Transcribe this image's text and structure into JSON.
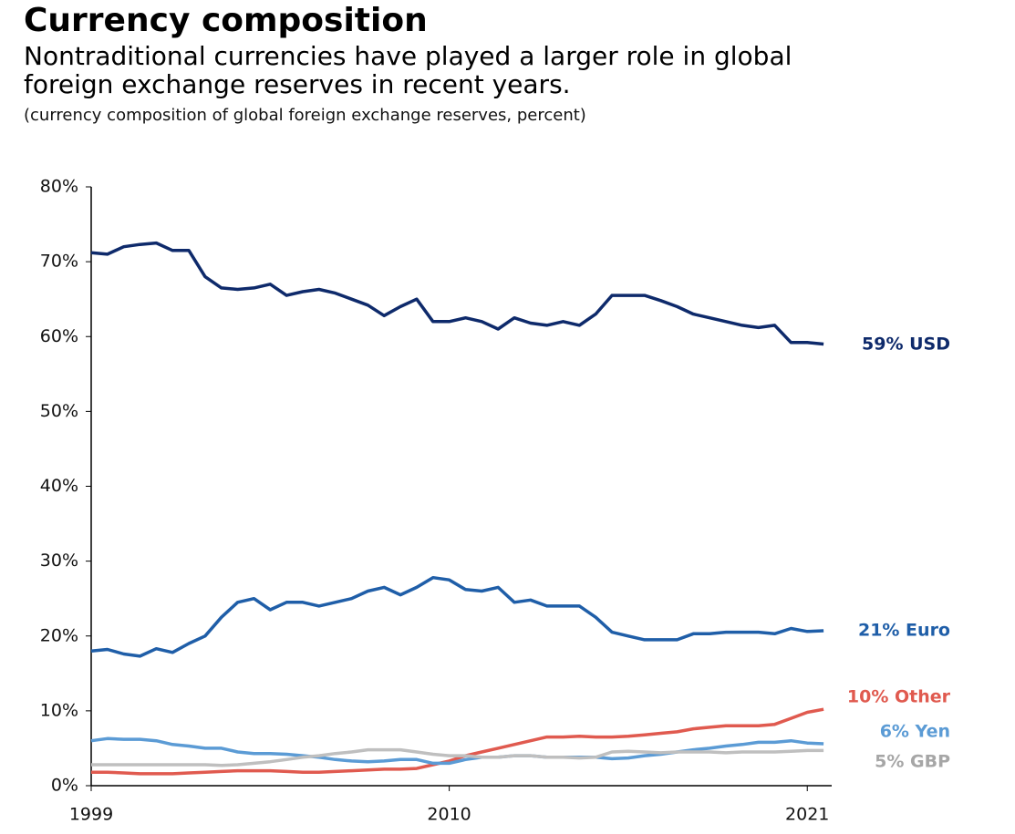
{
  "chart_data": {
    "type": "line",
    "title": "Currency composition",
    "subtitle": [
      "Nontraditional currencies have played a larger role in global",
      "foreign exchange reserves in recent years."
    ],
    "note": "(currency composition of global foreign exchange reserves, percent)",
    "x": [
      1999,
      1999.5,
      2000,
      2000.5,
      2001,
      2001.5,
      2002,
      2002.5,
      2003,
      2003.5,
      2004,
      2004.5,
      2005,
      2005.5,
      2006,
      2006.5,
      2007,
      2007.5,
      2008,
      2008.5,
      2009,
      2009.5,
      2010,
      2010.5,
      2011,
      2011.5,
      2012,
      2012.5,
      2013,
      2013.5,
      2014,
      2014.5,
      2015,
      2015.5,
      2016,
      2016.5,
      2017,
      2017.5,
      2018,
      2018.5,
      2019,
      2019.5,
      2020,
      2020.5,
      2021,
      2021.5
    ],
    "xlim": [
      1999,
      2021.75
    ],
    "xticks": [
      1999,
      2010,
      2021
    ],
    "ylim": [
      0,
      80
    ],
    "yticks": [
      {
        "value": 0,
        "label": "0%"
      },
      {
        "value": 10,
        "label": "10%"
      },
      {
        "value": 20,
        "label": "20%"
      },
      {
        "value": 30,
        "label": "30%"
      },
      {
        "value": 40,
        "label": "40%"
      },
      {
        "value": 50,
        "label": "50%"
      },
      {
        "value": 60,
        "label": "60%"
      },
      {
        "value": 70,
        "label": "70%"
      },
      {
        "value": 80,
        "label": "80%"
      }
    ],
    "grid": false,
    "series": [
      {
        "name": "59% USD",
        "color": "#0e2a6b",
        "values": [
          71.2,
          71.0,
          72,
          72.3,
          72.5,
          71.5,
          71.5,
          68.0,
          66.5,
          66.3,
          66.5,
          67,
          65.5,
          66,
          66.3,
          65.8,
          65,
          64.2,
          62.8,
          64,
          65,
          62,
          62,
          62.5,
          62,
          61,
          62.5,
          61.8,
          61.5,
          62,
          61.5,
          63,
          65.5,
          65.5,
          65.5,
          64.8,
          64,
          63,
          62.5,
          62,
          61.5,
          61.2,
          61.5,
          59.2,
          59.2,
          59
        ]
      },
      {
        "name": "21% Euro",
        "color": "#1f5ea8",
        "values": [
          18,
          18.2,
          17.6,
          17.3,
          18.3,
          17.8,
          19,
          20,
          22.5,
          24.5,
          25,
          23.5,
          24.5,
          24.5,
          24,
          24.5,
          25,
          26,
          26.5,
          25.5,
          26.5,
          27.8,
          27.5,
          26.2,
          26,
          26.5,
          24.5,
          24.8,
          24,
          24,
          24,
          22.5,
          20.5,
          20,
          19.5,
          19.5,
          19.5,
          20.3,
          20.3,
          20.5,
          20.5,
          20.5,
          20.3,
          21,
          20.6,
          20.7
        ]
      },
      {
        "name": "10% Other",
        "color": "#e05a4f",
        "values": [
          1.8,
          1.8,
          1.7,
          1.6,
          1.6,
          1.6,
          1.7,
          1.8,
          1.9,
          2.0,
          2.0,
          2.0,
          1.9,
          1.8,
          1.8,
          1.9,
          2.0,
          2.1,
          2.2,
          2.2,
          2.3,
          2.8,
          3.3,
          4.0,
          4.5,
          5.0,
          5.5,
          6.0,
          6.5,
          6.5,
          6.6,
          6.5,
          6.5,
          6.6,
          6.8,
          7.0,
          7.2,
          7.6,
          7.8,
          8.0,
          8.0,
          8.0,
          8.2,
          9.0,
          9.8,
          10.2
        ]
      },
      {
        "name": "6% Yen",
        "color": "#5b9bd5",
        "values": [
          6,
          6.3,
          6.2,
          6.2,
          6.0,
          5.5,
          5.3,
          5,
          5.0,
          4.5,
          4.3,
          4.3,
          4.2,
          4.0,
          3.8,
          3.5,
          3.3,
          3.2,
          3.3,
          3.5,
          3.5,
          3.0,
          3.0,
          3.5,
          3.8,
          3.8,
          4.0,
          4.0,
          3.8,
          3.8,
          3.8,
          3.8,
          3.6,
          3.7,
          4.0,
          4.2,
          4.5,
          4.8,
          5.0,
          5.3,
          5.5,
          5.8,
          5.8,
          6.0,
          5.7,
          5.6
        ]
      },
      {
        "name": "5% GBP",
        "color": "#bfbfbf",
        "values": [
          2.8,
          2.8,
          2.8,
          2.8,
          2.8,
          2.8,
          2.8,
          2.8,
          2.7,
          2.8,
          3.0,
          3.2,
          3.5,
          3.8,
          4.0,
          4.3,
          4.5,
          4.8,
          4.8,
          4.8,
          4.5,
          4.2,
          4.0,
          4.0,
          3.8,
          3.8,
          4.0,
          4.0,
          3.8,
          3.8,
          3.7,
          3.8,
          4.5,
          4.6,
          4.5,
          4.4,
          4.5,
          4.5,
          4.5,
          4.4,
          4.5,
          4.5,
          4.5,
          4.6,
          4.7,
          4.7
        ]
      }
    ]
  }
}
